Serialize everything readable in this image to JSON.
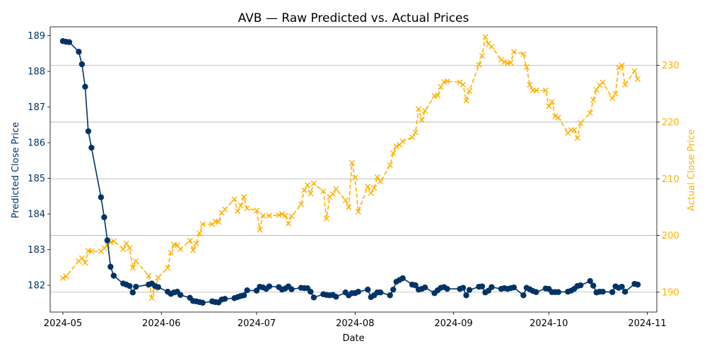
{
  "chart_data": {
    "type": "line",
    "title": "AVB — Raw Predicted vs. Actual Prices",
    "xlabel": "Date",
    "ylabel_left": "Predicted Close Price",
    "ylabel_right": "Actual Close Price",
    "xlim": [
      "2024-04-27",
      "2024-11-04"
    ],
    "ylim_left": [
      181.25,
      189.25
    ],
    "ylim_right": [
      186.5,
      236.8
    ],
    "x_ticks": [
      "2024-05-01",
      "2024-06-01",
      "2024-07-01",
      "2024-08-01",
      "2024-09-01",
      "2024-10-01",
      "2024-11-01"
    ],
    "x_tick_labels": [
      "2024-05",
      "2024-06",
      "2024-07",
      "2024-08",
      "2024-09",
      "2024-10",
      "2024-11"
    ],
    "y_ticks_left": [
      182,
      183,
      184,
      185,
      186,
      187,
      188,
      189
    ],
    "y_ticks_right": [
      190,
      200,
      210,
      220,
      230
    ],
    "grid": "horizontal lines at right-axis ticks",
    "colors": {
      "predicted": "#003366",
      "actual": "#FFB000",
      "grid": "#b0b0b0",
      "axis": "#000000"
    },
    "series": [
      {
        "name": "Predicted Close Price",
        "axis": "left",
        "style": "solid line with circle markers",
        "color": "#003366",
        "x": [
          "2024-05-01",
          "2024-05-02",
          "2024-05-03",
          "2024-05-06",
          "2024-05-07",
          "2024-05-08",
          "2024-05-09",
          "2024-05-10",
          "2024-05-13",
          "2024-05-14",
          "2024-05-15",
          "2024-05-16",
          "2024-05-17",
          "2024-05-20",
          "2024-05-21",
          "2024-05-22",
          "2024-05-23",
          "2024-05-24",
          "2024-05-28",
          "2024-05-29",
          "2024-05-30",
          "2024-05-31",
          "2024-06-03",
          "2024-06-04",
          "2024-06-05",
          "2024-06-06",
          "2024-06-07",
          "2024-06-10",
          "2024-06-11",
          "2024-06-12",
          "2024-06-13",
          "2024-06-14",
          "2024-06-17",
          "2024-06-18",
          "2024-06-19",
          "2024-06-20",
          "2024-06-21",
          "2024-06-24",
          "2024-06-25",
          "2024-06-26",
          "2024-06-27",
          "2024-06-28",
          "2024-07-01",
          "2024-07-02",
          "2024-07-03",
          "2024-07-04",
          "2024-07-05",
          "2024-07-08",
          "2024-07-09",
          "2024-07-10",
          "2024-07-11",
          "2024-07-12",
          "2024-07-15",
          "2024-07-16",
          "2024-07-17",
          "2024-07-18",
          "2024-07-19",
          "2024-07-22",
          "2024-07-23",
          "2024-07-24",
          "2024-07-25",
          "2024-07-26",
          "2024-07-29",
          "2024-07-30",
          "2024-07-31",
          "2024-08-01",
          "2024-08-02",
          "2024-08-05",
          "2024-08-06",
          "2024-08-07",
          "2024-08-08",
          "2024-08-09",
          "2024-08-12",
          "2024-08-13",
          "2024-08-14",
          "2024-08-15",
          "2024-08-16",
          "2024-08-19",
          "2024-08-20",
          "2024-08-21",
          "2024-08-22",
          "2024-08-23",
          "2024-08-26",
          "2024-08-27",
          "2024-08-28",
          "2024-08-29",
          "2024-08-30",
          "2024-09-03",
          "2024-09-04",
          "2024-09-05",
          "2024-09-06",
          "2024-09-09",
          "2024-09-10",
          "2024-09-11",
          "2024-09-12",
          "2024-09-13",
          "2024-09-16",
          "2024-09-17",
          "2024-09-18",
          "2024-09-19",
          "2024-09-20",
          "2024-09-23",
          "2024-09-24",
          "2024-09-25",
          "2024-09-26",
          "2024-09-27",
          "2024-09-30",
          "2024-10-01",
          "2024-10-02",
          "2024-10-03",
          "2024-10-04",
          "2024-10-07",
          "2024-10-08",
          "2024-10-09",
          "2024-10-10",
          "2024-10-11",
          "2024-10-14",
          "2024-10-15",
          "2024-10-16",
          "2024-10-17",
          "2024-10-18",
          "2024-10-21",
          "2024-10-22",
          "2024-10-23",
          "2024-10-24",
          "2024-10-25",
          "2024-10-28",
          "2024-10-29"
        ],
        "values": [
          188.85,
          188.83,
          188.82,
          188.55,
          188.2,
          187.57,
          186.32,
          185.86,
          184.47,
          183.91,
          183.26,
          182.52,
          182.27,
          182.05,
          182.02,
          181.98,
          181.8,
          181.96,
          182.02,
          182.05,
          181.98,
          181.95,
          181.82,
          181.76,
          181.8,
          181.82,
          181.73,
          181.65,
          181.56,
          181.55,
          181.53,
          181.51,
          181.55,
          181.53,
          181.52,
          181.6,
          181.62,
          181.64,
          181.67,
          181.7,
          181.72,
          181.86,
          181.85,
          181.96,
          181.94,
          181.9,
          181.97,
          181.95,
          181.88,
          181.91,
          181.97,
          181.89,
          181.93,
          181.92,
          181.92,
          181.82,
          181.66,
          181.75,
          181.73,
          181.72,
          181.73,
          181.68,
          181.8,
          181.72,
          181.78,
          181.78,
          181.82,
          181.88,
          181.67,
          181.72,
          181.8,
          181.8,
          181.72,
          181.88,
          182.1,
          182.15,
          182.2,
          182.02,
          182.0,
          181.88,
          181.9,
          181.94,
          181.78,
          181.86,
          181.93,
          181.95,
          181.9,
          181.9,
          181.93,
          181.72,
          181.87,
          181.96,
          181.97,
          181.8,
          181.85,
          181.95,
          181.9,
          181.92,
          181.9,
          181.92,
          181.94,
          181.72,
          181.93,
          181.89,
          181.84,
          181.81,
          181.91,
          181.9,
          181.81,
          181.81,
          181.81,
          181.82,
          181.85,
          181.9,
          181.98,
          182.0,
          182.12,
          181.99,
          181.8,
          181.82,
          181.82,
          181.81,
          181.97,
          181.93,
          181.96,
          181.82,
          182.04,
          182.02
        ]
      },
      {
        "name": "Actual Close Price",
        "axis": "right",
        "style": "dashed line with x markers",
        "color": "#FFB000",
        "x": [
          "2024-05-01",
          "2024-05-02",
          "2024-05-06",
          "2024-05-07",
          "2024-05-08",
          "2024-05-09",
          "2024-05-10",
          "2024-05-13",
          "2024-05-14",
          "2024-05-15",
          "2024-05-16",
          "2024-05-17",
          "2024-05-20",
          "2024-05-21",
          "2024-05-22",
          "2024-05-23",
          "2024-05-24",
          "2024-05-28",
          "2024-05-29",
          "2024-05-30",
          "2024-05-31",
          "2024-06-03",
          "2024-06-04",
          "2024-06-05",
          "2024-06-06",
          "2024-06-07",
          "2024-06-10",
          "2024-06-11",
          "2024-06-12",
          "2024-06-13",
          "2024-06-14",
          "2024-06-17",
          "2024-06-18",
          "2024-06-19",
          "2024-06-20",
          "2024-06-21",
          "2024-06-24",
          "2024-06-25",
          "2024-06-26",
          "2024-06-27",
          "2024-06-28",
          "2024-07-01",
          "2024-07-02",
          "2024-07-03",
          "2024-07-05",
          "2024-07-08",
          "2024-07-09",
          "2024-07-10",
          "2024-07-11",
          "2024-07-12",
          "2024-07-15",
          "2024-07-16",
          "2024-07-17",
          "2024-07-18",
          "2024-07-19",
          "2024-07-22",
          "2024-07-23",
          "2024-07-24",
          "2024-07-25",
          "2024-07-26",
          "2024-07-29",
          "2024-07-30",
          "2024-07-31",
          "2024-08-01",
          "2024-08-02",
          "2024-08-05",
          "2024-08-06",
          "2024-08-07",
          "2024-08-08",
          "2024-08-09",
          "2024-08-12",
          "2024-08-13",
          "2024-08-14",
          "2024-08-15",
          "2024-08-16",
          "2024-08-19",
          "2024-08-20",
          "2024-08-21",
          "2024-08-22",
          "2024-08-23",
          "2024-08-26",
          "2024-08-27",
          "2024-08-28",
          "2024-08-29",
          "2024-08-30",
          "2024-09-03",
          "2024-09-04",
          "2024-09-05",
          "2024-09-06",
          "2024-09-09",
          "2024-09-10",
          "2024-09-11",
          "2024-09-12",
          "2024-09-13",
          "2024-09-16",
          "2024-09-17",
          "2024-09-18",
          "2024-09-19",
          "2024-09-20",
          "2024-09-23",
          "2024-09-24",
          "2024-09-25",
          "2024-09-26",
          "2024-09-27",
          "2024-09-30",
          "2024-10-01",
          "2024-10-02",
          "2024-10-03",
          "2024-10-04",
          "2024-10-07",
          "2024-10-08",
          "2024-10-09",
          "2024-10-10",
          "2024-10-11",
          "2024-10-14",
          "2024-10-15",
          "2024-10-16",
          "2024-10-17",
          "2024-10-18",
          "2024-10-21",
          "2024-10-22",
          "2024-10-23",
          "2024-10-24",
          "2024-10-25",
          "2024-10-28",
          "2024-10-29"
        ],
        "values": [
          192.5,
          192.8,
          195.5,
          196.0,
          195.2,
          197.3,
          197.2,
          197.2,
          197.8,
          198.2,
          198.8,
          199.0,
          197.6,
          198.6,
          197.8,
          194.3,
          195.5,
          192.9,
          189.0,
          190.6,
          192.6,
          194.3,
          197.0,
          198.4,
          198.3,
          197.6,
          199.1,
          197.4,
          198.6,
          200.4,
          202.0,
          202.0,
          202.5,
          202.4,
          204.0,
          204.6,
          206.4,
          204.3,
          205.3,
          206.8,
          204.8,
          204.4,
          201.0,
          203.5,
          203.5,
          203.6,
          203.8,
          203.5,
          202.1,
          203.4,
          205.5,
          208.0,
          208.9,
          207.4,
          209.2,
          207.8,
          203.0,
          206.8,
          207.3,
          208.2,
          206.2,
          205.0,
          212.8,
          210.2,
          204.2,
          208.6,
          207.5,
          208.4,
          210.3,
          209.5,
          212.4,
          214.5,
          215.7,
          216.0,
          216.6,
          217.3,
          218.2,
          222.3,
          220.4,
          222.0,
          224.6,
          224.7,
          226.2,
          227.1,
          227.2,
          227.0,
          226.6,
          223.8,
          225.5,
          230.1,
          231.7,
          235.0,
          233.8,
          233.3,
          231.0,
          230.6,
          230.4,
          230.5,
          232.4,
          232.0,
          229.7,
          226.6,
          225.6,
          225.6,
          225.6,
          222.8,
          223.6,
          221.0,
          220.8,
          218.1,
          218.6,
          218.6,
          217.2,
          219.8,
          221.6,
          223.9,
          225.7,
          226.5,
          227.0,
          224.2,
          225.0,
          229.6,
          230.0,
          226.6,
          229.0,
          227.6
        ]
      }
    ]
  }
}
